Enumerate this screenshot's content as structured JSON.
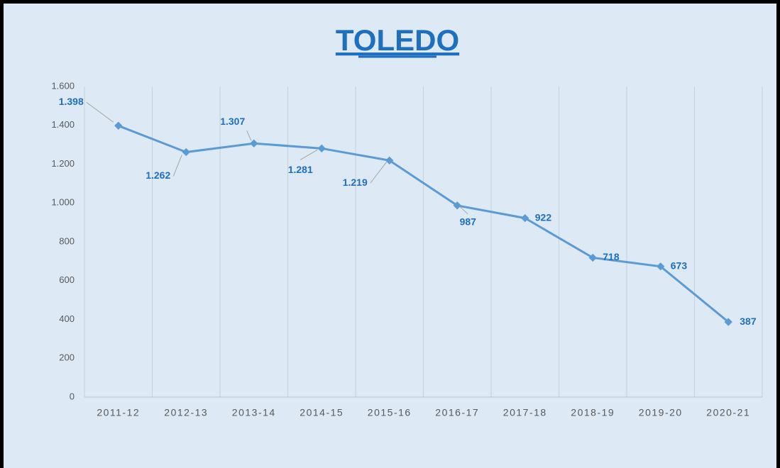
{
  "chart_data": {
    "type": "line",
    "title": "TOLEDO",
    "categories": [
      "2011-12",
      "2012-13",
      "2013-14",
      "2014-15",
      "2015-16",
      "2016-17",
      "2017-18",
      "2018-19",
      "2019-20",
      "2020-21"
    ],
    "values": [
      1398,
      1262,
      1307,
      1281,
      1219,
      987,
      922,
      718,
      673,
      387
    ],
    "value_labels": [
      "1.398",
      "1.262",
      "1.307",
      "1.281",
      "1.219",
      "987",
      "922",
      "718",
      "673",
      "387"
    ],
    "color": "#5b9bd5",
    "ylim": [
      0,
      1600
    ],
    "yticks": [
      0,
      200,
      400,
      600,
      800,
      {
        "value": 1000,
        "label": "1.000"
      },
      {
        "value": 1200,
        "label": "1.200"
      },
      {
        "value": 1400,
        "label": "1.400"
      },
      {
        "value": 1600,
        "label": "1.600"
      }
    ],
    "grid": true
  }
}
